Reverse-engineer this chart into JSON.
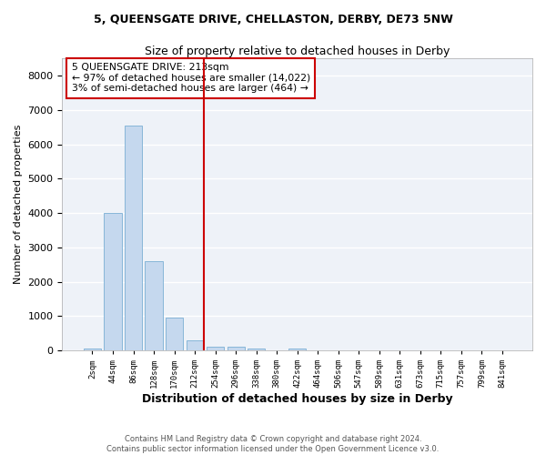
{
  "title": "5, QUEENSGATE DRIVE, CHELLASTON, DERBY, DE73 5NW",
  "subtitle": "Size of property relative to detached houses in Derby",
  "xlabel": "Distribution of detached houses by size in Derby",
  "ylabel": "Number of detached properties",
  "bar_color": "#c5d8ee",
  "bar_edge_color": "#7aafd4",
  "background_color": "#eef2f8",
  "grid_color": "#ffffff",
  "annotation_box_color": "#cc0000",
  "vline_color": "#cc0000",
  "annotation_text": "5 QUEENSGATE DRIVE: 213sqm\n← 97% of detached houses are smaller (14,022)\n3% of semi-detached houses are larger (464) →",
  "categories": [
    "2sqm",
    "44sqm",
    "86sqm",
    "128sqm",
    "170sqm",
    "212sqm",
    "254sqm",
    "296sqm",
    "338sqm",
    "380sqm",
    "422sqm",
    "464sqm",
    "506sqm",
    "547sqm",
    "589sqm",
    "631sqm",
    "673sqm",
    "715sqm",
    "757sqm",
    "799sqm",
    "841sqm"
  ],
  "bar_heights": [
    50,
    4000,
    6550,
    2600,
    950,
    300,
    120,
    110,
    60,
    0,
    60,
    0,
    0,
    0,
    0,
    0,
    0,
    0,
    0,
    0,
    0
  ],
  "ylim": [
    0,
    8500
  ],
  "yticks": [
    0,
    1000,
    2000,
    3000,
    4000,
    5000,
    6000,
    7000,
    8000
  ],
  "footer1": "Contains HM Land Registry data © Crown copyright and database right 2024.",
  "footer2": "Contains public sector information licensed under the Open Government Licence v3.0."
}
